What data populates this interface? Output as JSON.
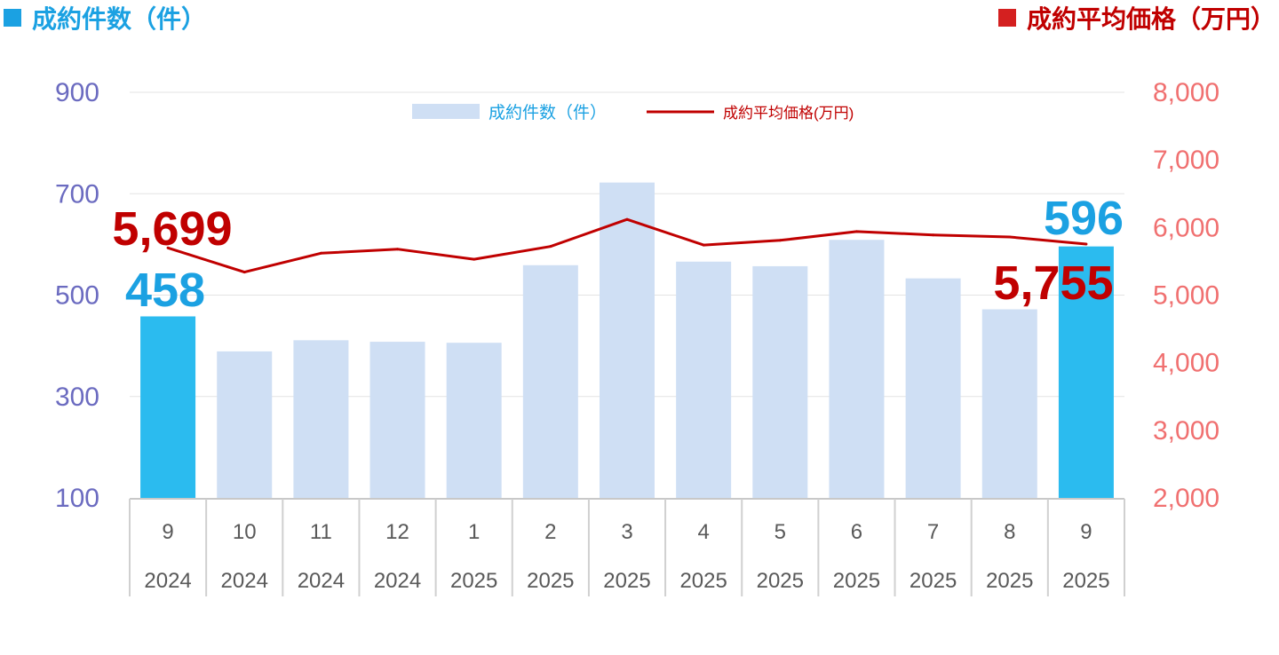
{
  "header": {
    "left_title": "成約件数（件）",
    "right_title": "成約平均価格（万円）",
    "left_square_color": "#1ba1e2",
    "right_square_color": "#d42020"
  },
  "chart_data": {
    "type": "bar+line",
    "categories": [
      {
        "month": "9",
        "year": "2024"
      },
      {
        "month": "10",
        "year": "2024"
      },
      {
        "month": "11",
        "year": "2024"
      },
      {
        "month": "12",
        "year": "2024"
      },
      {
        "month": "1",
        "year": "2025"
      },
      {
        "month": "2",
        "year": "2025"
      },
      {
        "month": "3",
        "year": "2025"
      },
      {
        "month": "4",
        "year": "2025"
      },
      {
        "month": "5",
        "year": "2025"
      },
      {
        "month": "6",
        "year": "2025"
      },
      {
        "month": "7",
        "year": "2025"
      },
      {
        "month": "8",
        "year": "2025"
      },
      {
        "month": "9",
        "year": "2025"
      }
    ],
    "series": [
      {
        "name": "成約件数（件）",
        "type": "bar",
        "axis": "left",
        "color": "#cfdff4",
        "highlight_color": "#2bbbef",
        "highlight_indices": [
          0,
          12
        ],
        "values": [
          458,
          389,
          411,
          408,
          406,
          559,
          722,
          566,
          557,
          609,
          533,
          472,
          596
        ]
      },
      {
        "name": "成約平均価格(万円)",
        "type": "line",
        "axis": "right",
        "color": "#c00000",
        "values": [
          5699,
          5340,
          5620,
          5680,
          5530,
          5720,
          6120,
          5740,
          5810,
          5940,
          5890,
          5860,
          5755
        ]
      }
    ],
    "y_left": {
      "min": 100,
      "max": 900,
      "ticks": [
        "900",
        "700",
        "500",
        "300",
        "100"
      ],
      "color": "#6b6bc0"
    },
    "y_right": {
      "min": 2000,
      "max": 8000,
      "ticks": [
        "8,000",
        "7,000",
        "6,000",
        "5,000",
        "4,000",
        "3,000",
        "2,000"
      ],
      "color": "#f07070"
    },
    "annotations": [
      {
        "text": "5,699",
        "series": 1,
        "index": 0,
        "color": "#c00000"
      },
      {
        "text": "458",
        "series": 0,
        "index": 0,
        "color": "#1ba1e2"
      },
      {
        "text": "596",
        "series": 0,
        "index": 12,
        "color": "#1ba1e2"
      },
      {
        "text": "5,755",
        "series": 1,
        "index": 12,
        "color": "#c00000"
      }
    ],
    "legend": {
      "placement": "top-center"
    },
    "grid": true
  }
}
